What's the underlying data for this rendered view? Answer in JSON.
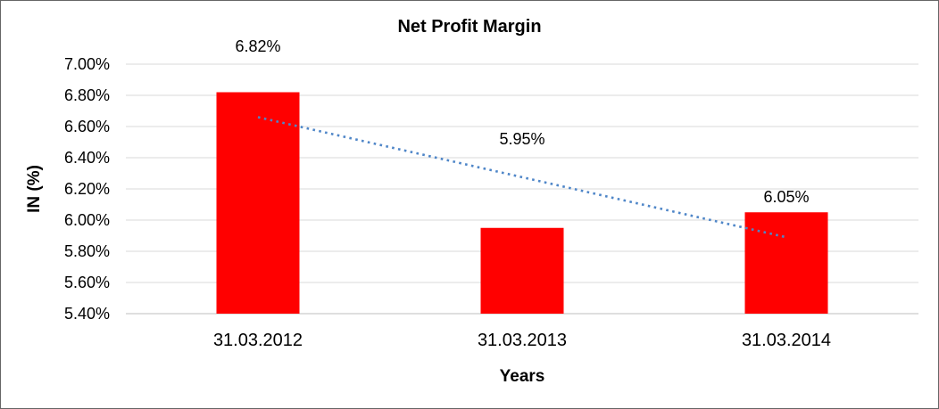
{
  "chart_data": {
    "type": "bar",
    "title": "Net Profit Margin",
    "xlabel": "Years",
    "ylabel": "IN (%)",
    "categories": [
      "31.03.2012",
      "31.03.2013",
      "31.03.2014"
    ],
    "values": [
      6.82,
      5.95,
      6.05
    ],
    "data_labels": [
      "6.82%",
      "5.95%",
      "6.05%"
    ],
    "ylim": [
      5.4,
      7.0
    ],
    "ytick_step": 0.2,
    "yticks": [
      {
        "value": 7.0,
        "label": "7.00%"
      },
      {
        "value": 6.8,
        "label": "6.80%"
      },
      {
        "value": 6.6,
        "label": "6.60%"
      },
      {
        "value": 6.4,
        "label": "6.40%"
      },
      {
        "value": 6.2,
        "label": "6.20%"
      },
      {
        "value": 6.0,
        "label": "6.00%"
      },
      {
        "value": 5.8,
        "label": "5.80%"
      },
      {
        "value": 5.6,
        "label": "5.60%"
      },
      {
        "value": 5.4,
        "label": "5.40%"
      }
    ],
    "grid": true,
    "legend": "none",
    "series_color": "#FF0000",
    "trendline": {
      "style": "dotted",
      "color": "#4F86C8",
      "start_value": 6.66,
      "end_value": 5.89
    }
  },
  "colors": {
    "bar": "#FF0000",
    "trendline": "#4F86C8",
    "gridline": "#D9D9D9",
    "axis_line": "#BFBFBF",
    "border": "#666666",
    "text": "#000000",
    "background": "#FFFFFF"
  }
}
